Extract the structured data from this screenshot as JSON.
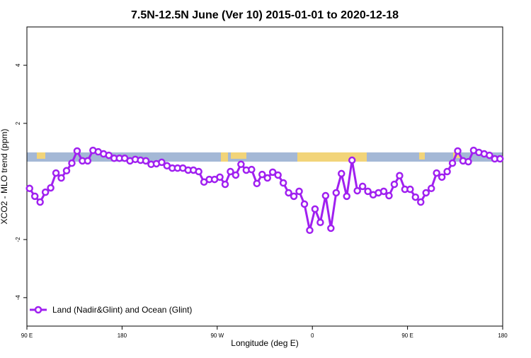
{
  "chart_data": {
    "type": "line",
    "title": "7.5N-12.5N June (Ver 10)   2015-01-01 to 2020-12-18",
    "x_label": "Longitude (deg E)",
    "y_label": "XCO2 - MLO trend (ppm)",
    "x": [
      92.5,
      97.5,
      102.5,
      107.5,
      112.5,
      117.5,
      122.5,
      127.5,
      132.5,
      137.5,
      142.5,
      147.5,
      152.5,
      157.5,
      162.5,
      167.5,
      172.5,
      177.5,
      182.5,
      187.5,
      192.5,
      197.5,
      202.5,
      207.5,
      212.5,
      217.5,
      222.5,
      227.5,
      232.5,
      237.5,
      242.5,
      247.5,
      252.5,
      257.5,
      262.5,
      267.5,
      272.5,
      277.5,
      282.5,
      287.5,
      292.5,
      297.5,
      302.5,
      307.5,
      312.5,
      317.5,
      322.5,
      327.5,
      332.5,
      337.5,
      342.5,
      347.5,
      352.5,
      357.5,
      362.5,
      367.5,
      372.5,
      377.5,
      382.5,
      387.5,
      392.5,
      397.5,
      402.5,
      407.5,
      412.5,
      417.5,
      422.5,
      427.5,
      432.5,
      437.5,
      442.5,
      447.5,
      452.5,
      457.5,
      462.5,
      467.5,
      472.5,
      477.5,
      482.5,
      487.5,
      492.5,
      497.5,
      502.5,
      507.5,
      512.5,
      517.5,
      522.5,
      527.5,
      532.5,
      537.5
    ],
    "series": [
      {
        "name": "Land (Nadir&Glint) and Ocean (Glint)",
        "color": "#a020f0",
        "values": [
          -0.24,
          -0.51,
          -0.71,
          -0.37,
          -0.22,
          0.29,
          0.12,
          0.37,
          0.63,
          1.05,
          0.71,
          0.71,
          1.07,
          1.02,
          0.95,
          0.9,
          0.8,
          0.8,
          0.8,
          0.71,
          0.76,
          0.73,
          0.71,
          0.59,
          0.61,
          0.66,
          0.54,
          0.46,
          0.46,
          0.46,
          0.39,
          0.39,
          0.34,
          -0.02,
          0.07,
          0.07,
          0.15,
          -0.1,
          0.34,
          0.22,
          0.59,
          0.39,
          0.41,
          -0.07,
          0.24,
          0.12,
          0.32,
          0.22,
          -0.05,
          -0.39,
          -0.51,
          -0.34,
          -0.78,
          -1.68,
          -0.95,
          -1.41,
          -0.49,
          -1.61,
          -0.39,
          0.27,
          -0.51,
          0.73,
          -0.32,
          -0.17,
          -0.34,
          -0.46,
          -0.39,
          -0.34,
          -0.49,
          -0.1,
          0.2,
          -0.27,
          -0.27,
          -0.54,
          -0.71,
          -0.39,
          -0.24,
          0.29,
          0.15,
          0.34,
          0.63,
          1.05,
          0.71,
          0.68,
          1.07,
          1.0,
          0.95,
          0.9,
          0.78,
          0.78
        ]
      }
    ],
    "xlim": [
      90,
      540
    ],
    "xticks": [
      {
        "value": 90,
        "label": "90 E"
      },
      180,
      {
        "value": 270,
        "label": "90 W"
      },
      {
        "value": 360,
        "label": "0"
      },
      {
        "value": 450,
        "label": "90 E"
      },
      {
        "value": 540,
        "label": "180"
      }
    ],
    "ylim": [
      -4.98,
      5.32
    ],
    "yticks": [
      -4,
      -2,
      2,
      4
    ],
    "legend": "bottom-left"
  }
}
